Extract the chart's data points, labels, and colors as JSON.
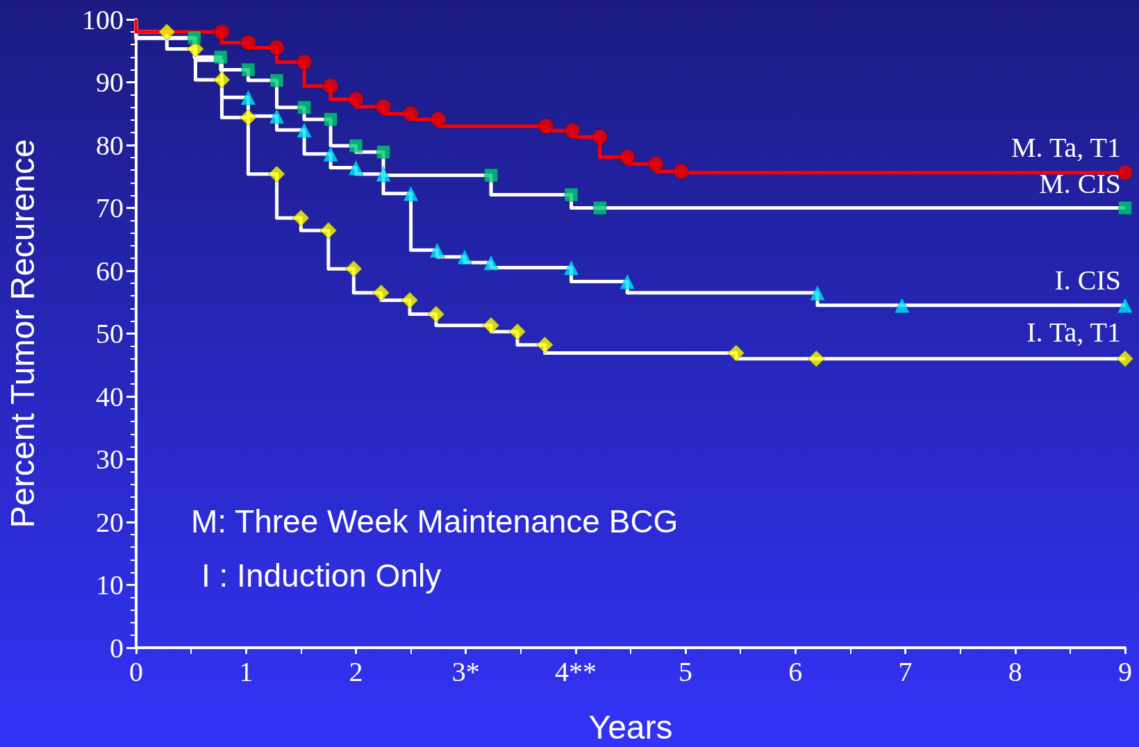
{
  "chart_data": {
    "type": "step",
    "xlabel": "Years",
    "ylabel": "Percent Tumor Recurence",
    "xlim": [
      0,
      9
    ],
    "xticks": [
      0,
      1,
      2,
      {
        "value": 3,
        "label": "3*"
      },
      {
        "value": 4,
        "label": "4**"
      },
      5,
      6,
      7,
      8,
      9
    ],
    "ylim": [
      0,
      100
    ],
    "yticks": [
      0,
      10,
      20,
      30,
      40,
      50,
      60,
      70,
      80,
      90,
      100
    ],
    "grid": false,
    "legend": false,
    "annotations": [
      "M: Three Week Maintenance BCG",
      "I : Induction Only"
    ],
    "series": [
      {
        "type": "step",
        "color": "#ffffff",
        "marker": "none",
        "x": [
          0,
          0.28,
          0.54,
          0.78,
          1.02,
          1.28,
          1.5,
          1.75,
          1.98,
          2.23,
          2.49,
          2.73,
          3.23,
          3.47,
          3.72,
          5.46,
          6.19,
          9
        ],
        "values": [
          100,
          98.0,
          95.3,
          90.4,
          84.4,
          75.4,
          68.4,
          66.4,
          60.3,
          56.5,
          55.3,
          53.1,
          51.3,
          50.3,
          48.2,
          46.9,
          46.0,
          46.0
        ]
      },
      {
        "type": "step",
        "color": "#ffffff",
        "marker": "none",
        "x": [
          0,
          0.54,
          0.78,
          1.02,
          1.28,
          1.53,
          1.77,
          2.0,
          2.25,
          2.5,
          2.74,
          2.99,
          3.23,
          3.96,
          4.47,
          6.2,
          6.97,
          9
        ],
        "values": [
          100,
          97.0,
          93.5,
          87.6,
          84.6,
          82.4,
          78.6,
          76.4,
          75.4,
          72.3,
          63.3,
          62.2,
          61.3,
          60.5,
          58.3,
          56.5,
          54.5,
          54.5
        ]
      },
      {
        "type": "step",
        "color": "#ffffff",
        "marker": "none",
        "x": [
          0,
          0.53,
          0.77,
          1.02,
          1.28,
          1.53,
          1.77,
          2.0,
          2.25,
          3.23,
          3.96,
          4.22,
          9
        ],
        "values": [
          100,
          97.1,
          94.0,
          92.0,
          90.3,
          86.0,
          84.1,
          79.9,
          78.9,
          75.2,
          72.1,
          70.0,
          70.0
        ]
      },
      {
        "type": "step",
        "color": "#ff0000",
        "marker": "none",
        "x": [
          0,
          0.78,
          1.02,
          1.28,
          1.53,
          1.77,
          2.0,
          2.25,
          2.5,
          2.75,
          3.73,
          3.97,
          4.22,
          4.47,
          4.73,
          4.96,
          9
        ],
        "values": [
          100,
          98.0,
          96.3,
          95.5,
          93.2,
          89.4,
          87.3,
          86.1,
          85.0,
          84.1,
          83.0,
          82.3,
          81.3,
          78.1,
          77.0,
          75.8,
          75.6
        ]
      },
      {
        "type": "scatter",
        "name": "I. Ta, T1",
        "color": "#ffff00",
        "marker": "diamond",
        "x": [
          0.28,
          0.54,
          0.78,
          1.02,
          1.28,
          1.5,
          1.75,
          1.98,
          2.23,
          2.49,
          2.73,
          3.23,
          3.47,
          3.72,
          5.46,
          6.19,
          9
        ],
        "values": [
          98.0,
          95.3,
          90.4,
          84.4,
          75.4,
          68.4,
          66.4,
          60.3,
          56.5,
          55.3,
          53.1,
          51.3,
          50.3,
          48.2,
          46.9,
          46.0,
          46.0
        ]
      },
      {
        "type": "scatter",
        "name": "I. CIS",
        "color": "#00e5ff",
        "marker": "triangle",
        "x": [
          1.02,
          1.28,
          1.53,
          1.77,
          2.0,
          2.25,
          2.5,
          2.74,
          2.99,
          3.23,
          3.96,
          4.47,
          6.2,
          6.97,
          9
        ],
        "values": [
          87.6,
          84.6,
          82.4,
          78.6,
          76.4,
          75.4,
          72.3,
          63.3,
          62.2,
          61.3,
          60.5,
          58.3,
          56.5,
          54.5,
          54.5
        ]
      },
      {
        "type": "scatter",
        "name": "M. CIS",
        "color": "#00cc77",
        "marker": "square",
        "x": [
          0.53,
          0.77,
          1.02,
          1.28,
          1.53,
          1.77,
          2.0,
          2.25,
          3.23,
          3.96,
          4.22,
          9
        ],
        "values": [
          97.1,
          94.0,
          92.0,
          90.3,
          86.0,
          84.1,
          79.9,
          78.9,
          75.2,
          72.1,
          70.0,
          70.0
        ]
      },
      {
        "type": "scatter",
        "name": "M. Ta, T1",
        "color": "#ee0000",
        "marker": "circle",
        "x": [
          0.78,
          1.02,
          1.28,
          1.53,
          1.77,
          2.0,
          2.25,
          2.5,
          2.75,
          3.73,
          3.97,
          4.22,
          4.47,
          4.73,
          4.96,
          9
        ],
        "values": [
          98.0,
          96.3,
          95.5,
          93.2,
          89.4,
          87.3,
          86.1,
          85.0,
          84.1,
          83.0,
          82.3,
          81.3,
          78.1,
          77.0,
          75.8,
          75.6
        ]
      }
    ]
  }
}
